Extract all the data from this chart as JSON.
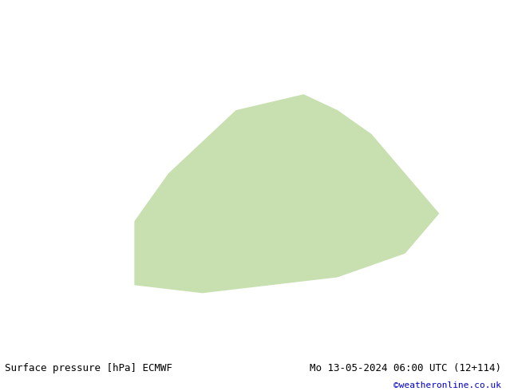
{
  "title_left": "Surface pressure [hPa] ECMWF",
  "title_right": "Mo 13-05-2024 06:00 UTC (12+114)",
  "copyright": "©weatheronline.co.uk",
  "bg_color": "#d0e8c0",
  "land_color": "#c8e0b0",
  "sea_color": "#d8eef8",
  "contour_low_color": "#0000cc",
  "contour_high_color": "#cc0000",
  "contour_critical_color": "#000000",
  "footer_bg": "#e8e8e8",
  "footer_text_color": "#000000",
  "copyright_color": "#0000cc",
  "figsize": [
    6.34,
    4.9
  ],
  "dpi": 100
}
